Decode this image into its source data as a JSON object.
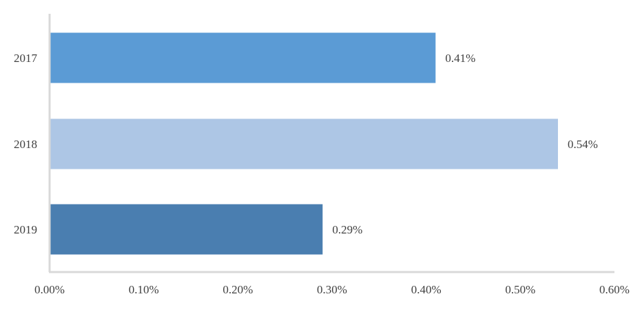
{
  "chart_data": {
    "type": "bar",
    "orientation": "horizontal",
    "title": "",
    "xlabel": "",
    "ylabel": "",
    "categories": [
      "2017",
      "2018",
      "2019"
    ],
    "values": [
      0.41,
      0.54,
      0.29
    ],
    "value_labels": [
      "0.41%",
      "0.54%",
      "0.29%"
    ],
    "bar_colors": [
      "#5b9bd5",
      "#adc6e5",
      "#4a7eb0"
    ],
    "xlim": [
      0,
      0.6
    ],
    "x_ticks": [
      0,
      0.1,
      0.2,
      0.3,
      0.4,
      0.5,
      0.6
    ],
    "x_tick_labels": [
      "0.00%",
      "0.10%",
      "0.20%",
      "0.30%",
      "0.40%",
      "0.50%",
      "0.60%"
    ],
    "grid": false,
    "legend": "none",
    "axis_color": "#d9d9d9"
  }
}
